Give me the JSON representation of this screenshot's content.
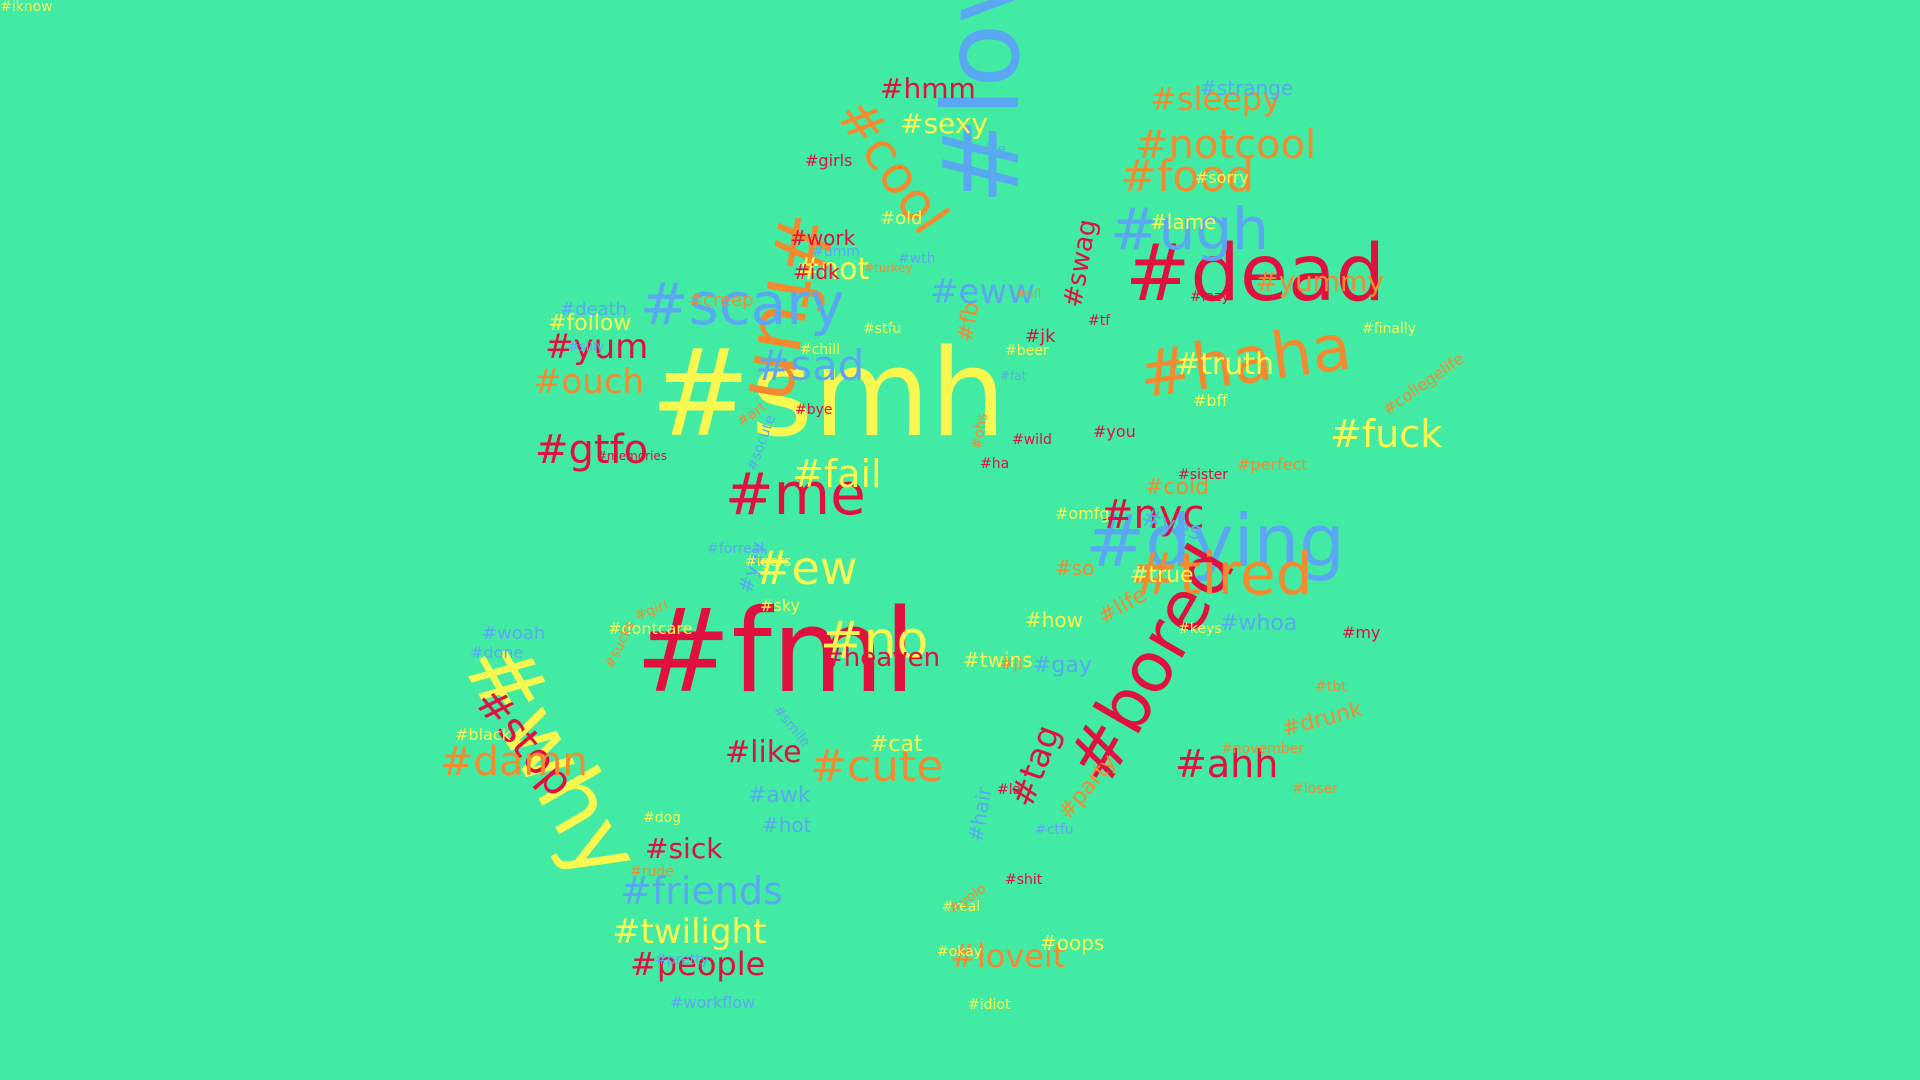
{
  "colors": {
    "background": "#42EBA3",
    "red": "#E0103F",
    "yellow": "#F8F850",
    "orange": "#F48A30",
    "blue": "#5AA8F2"
  },
  "words": [
    {
      "text": "#smh",
      "color": "yellow"
    },
    {
      "text": "#love",
      "color": "blue"
    },
    {
      "text": "#fml",
      "color": "red"
    },
    {
      "text": "#why",
      "color": "yellow"
    },
    {
      "text": "#dead",
      "color": "red"
    },
    {
      "text": "#fun",
      "color": "orange"
    },
    {
      "text": "#dying",
      "color": "blue"
    },
    {
      "text": "#bored",
      "color": "red"
    },
    {
      "text": "#tired",
      "color": "orange"
    },
    {
      "text": "#haha",
      "color": "orange"
    },
    {
      "text": "#ugh",
      "color": "blue"
    },
    {
      "text": "#scary",
      "color": "blue"
    },
    {
      "text": "#me",
      "color": "red"
    },
    {
      "text": "#cool",
      "color": "orange"
    },
    {
      "text": "#no",
      "color": "yellow"
    },
    {
      "text": "#food",
      "color": "orange"
    },
    {
      "text": "#notcool",
      "color": "orange"
    },
    {
      "text": "#stop",
      "color": "red"
    },
    {
      "text": "#cute",
      "color": "orange"
    },
    {
      "text": "#damn",
      "color": "orange"
    },
    {
      "text": "#ew",
      "color": "yellow"
    },
    {
      "text": "#sad",
      "color": "blue"
    },
    {
      "text": "#nyc",
      "color": "red"
    },
    {
      "text": "#fuck",
      "color": "yellow"
    },
    {
      "text": "#ahh",
      "color": "red"
    },
    {
      "text": "#friends",
      "color": "blue"
    },
    {
      "text": "#gtfo",
      "color": "red"
    },
    {
      "text": "#fail",
      "color": "yellow"
    },
    {
      "text": "#eww",
      "color": "blue"
    },
    {
      "text": "#yum",
      "color": "red"
    },
    {
      "text": "#ouch",
      "color": "orange"
    },
    {
      "text": "#twilight",
      "color": "yellow"
    },
    {
      "text": "#people",
      "color": "red"
    },
    {
      "text": "#loveit",
      "color": "orange"
    },
    {
      "text": "#sleepy",
      "color": "orange"
    },
    {
      "text": "#tag",
      "color": "red"
    },
    {
      "text": "#truth",
      "color": "yellow"
    },
    {
      "text": "#yummy",
      "color": "orange"
    },
    {
      "text": "#heaven",
      "color": "red"
    },
    {
      "text": "#not",
      "color": "yellow"
    },
    {
      "text": "#hmm",
      "color": "red"
    },
    {
      "text": "#sexy",
      "color": "yellow"
    },
    {
      "text": "#like",
      "color": "red"
    },
    {
      "text": "#sick",
      "color": "red"
    },
    {
      "text": "#swag",
      "color": "red"
    },
    {
      "text": "#follow",
      "color": "yellow"
    },
    {
      "text": "#strange",
      "color": "blue"
    },
    {
      "text": "#lame",
      "color": "yellow"
    },
    {
      "text": "#cold",
      "color": "orange"
    },
    {
      "text": "#yes",
      "color": "blue"
    },
    {
      "text": "#true",
      "color": "yellow"
    },
    {
      "text": "#gay",
      "color": "blue"
    },
    {
      "text": "#whoa",
      "color": "blue"
    },
    {
      "text": "#oops",
      "color": "yellow"
    },
    {
      "text": "#drunk",
      "color": "orange"
    },
    {
      "text": "#party",
      "color": "orange"
    },
    {
      "text": "#life",
      "color": "orange"
    },
    {
      "text": "#how",
      "color": "yellow"
    },
    {
      "text": "#so",
      "color": "orange"
    },
    {
      "text": "#work",
      "color": "red"
    },
    {
      "text": "#idk",
      "color": "red"
    },
    {
      "text": "#old",
      "color": "yellow"
    },
    {
      "text": "#death",
      "color": "blue"
    },
    {
      "text": "#creep",
      "color": "orange"
    },
    {
      "text": "#jk",
      "color": "red"
    },
    {
      "text": "#fb",
      "color": "orange"
    },
    {
      "text": "#cat",
      "color": "yellow"
    },
    {
      "text": "#awk",
      "color": "blue"
    },
    {
      "text": "#hot",
      "color": "blue"
    },
    {
      "text": "#hair",
      "color": "blue"
    },
    {
      "text": "#yay",
      "color": "blue"
    },
    {
      "text": "#sky",
      "color": "yellow"
    },
    {
      "text": "#woah",
      "color": "blue"
    },
    {
      "text": "#done",
      "color": "blue"
    },
    {
      "text": "#black",
      "color": "yellow"
    },
    {
      "text": "#girls",
      "color": "red"
    },
    {
      "text": "#nice",
      "color": "blue"
    },
    {
      "text": "#sorry",
      "color": "yellow"
    },
    {
      "text": "#lazy",
      "color": "red"
    },
    {
      "text": "#finally",
      "color": "yellow"
    },
    {
      "text": "#collegelife",
      "color": "orange"
    },
    {
      "text": "#perfect",
      "color": "orange"
    },
    {
      "text": "#sister",
      "color": "red"
    },
    {
      "text": "#omfg",
      "color": "yellow"
    },
    {
      "text": "#bff",
      "color": "yellow"
    },
    {
      "text": "#you",
      "color": "red"
    },
    {
      "text": "#my",
      "color": "red"
    },
    {
      "text": "#keys",
      "color": "yellow"
    },
    {
      "text": "#tbt",
      "color": "orange"
    },
    {
      "text": "#november",
      "color": "orange"
    },
    {
      "text": "#loser",
      "color": "orange"
    },
    {
      "text": "#twins",
      "color": "yellow"
    },
    {
      "text": "#ji",
      "color": "orange"
    },
    {
      "text": "#la",
      "color": "red"
    },
    {
      "text": "#ctfu",
      "color": "blue"
    },
    {
      "text": "#shit",
      "color": "red"
    },
    {
      "text": "#real",
      "color": "yellow"
    },
    {
      "text": "#yolo",
      "color": "orange"
    },
    {
      "text": "#okay",
      "color": "yellow"
    },
    {
      "text": "#idiot",
      "color": "yellow"
    },
    {
      "text": "#dontcare",
      "color": "yellow"
    },
    {
      "text": "#girl",
      "color": "orange"
    },
    {
      "text": "#sucks",
      "color": "orange"
    },
    {
      "text": "#smile",
      "color": "blue"
    },
    {
      "text": "#dog",
      "color": "yellow"
    },
    {
      "text": "#rude",
      "color": "orange"
    },
    {
      "text": "#pretty",
      "color": "blue"
    },
    {
      "text": "#workflow",
      "color": "blue"
    },
    {
      "text": "#forreal",
      "color": "blue"
    },
    {
      "text": "#igers",
      "color": "yellow"
    },
    {
      "text": "#socute",
      "color": "blue"
    },
    {
      "text": "#art",
      "color": "orange"
    },
    {
      "text": "#bye",
      "color": "red"
    },
    {
      "text": "#chill",
      "color": "yellow"
    },
    {
      "text": "#stfu",
      "color": "yellow"
    },
    {
      "text": "#beer",
      "color": "yellow"
    },
    {
      "text": "#fat",
      "color": "blue"
    },
    {
      "text": "#ohs",
      "color": "orange"
    },
    {
      "text": "#wild",
      "color": "red"
    },
    {
      "text": "#ha",
      "color": "red"
    },
    {
      "text": "#tf",
      "color": "red"
    },
    {
      "text": "#nfl",
      "color": "orange"
    },
    {
      "text": "#umm",
      "color": "blue"
    },
    {
      "text": "#turkey",
      "color": "orange"
    },
    {
      "text": "#wth",
      "color": "blue"
    },
    {
      "text": "#silly",
      "color": "blue"
    },
    {
      "text": "#memories",
      "color": "red"
    },
    {
      "text": "#iknow",
      "color": "yellow"
    }
  ]
}
